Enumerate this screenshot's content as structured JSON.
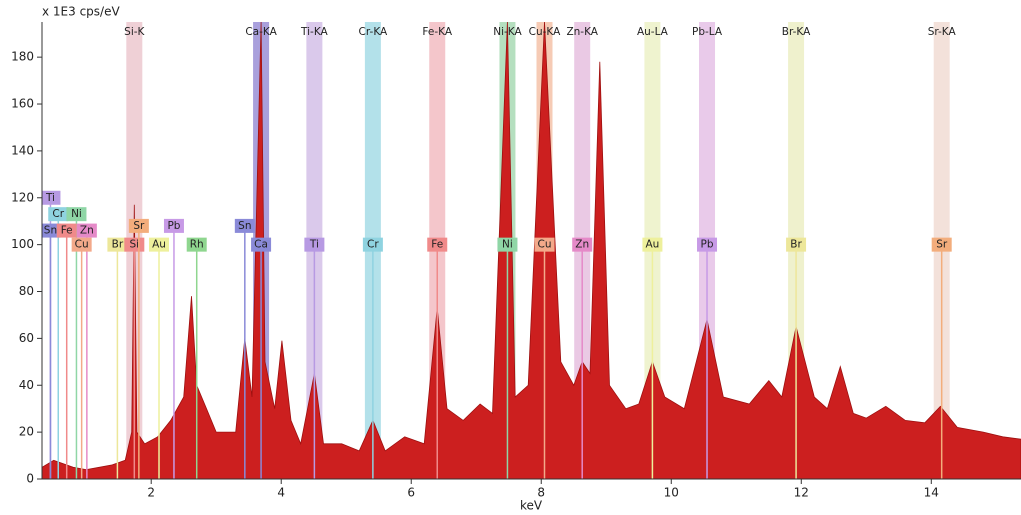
{
  "chart_data": {
    "type": "area",
    "y_label": "x 1E3 cps/eV",
    "x_label": "keV",
    "color": "#cc1f1f",
    "x": [
      0.32,
      0.5,
      0.8,
      1.0,
      1.2,
      1.4,
      1.6,
      1.7,
      1.74,
      1.78,
      1.9,
      2.1,
      2.3,
      2.5,
      2.62,
      2.7,
      2.85,
      3.0,
      3.3,
      3.44,
      3.55,
      3.69,
      3.75,
      3.9,
      4.01,
      4.15,
      4.3,
      4.51,
      4.65,
      4.93,
      5.2,
      5.41,
      5.6,
      5.9,
      6.2,
      6.4,
      6.55,
      6.8,
      7.06,
      7.25,
      7.48,
      7.6,
      7.8,
      8.05,
      8.3,
      8.5,
      8.63,
      8.75,
      8.9,
      9.05,
      9.3,
      9.5,
      9.71,
      9.9,
      10.2,
      10.55,
      10.8,
      11.2,
      11.5,
      11.7,
      11.92,
      12.2,
      12.4,
      12.6,
      12.8,
      13.0,
      13.3,
      13.6,
      13.9,
      14.14,
      14.4,
      14.8,
      15.1,
      15.38
    ],
    "values": [
      5,
      8,
      5,
      4,
      5,
      6,
      8,
      20,
      117,
      20,
      15,
      18,
      25,
      35,
      78,
      40,
      30,
      20,
      20,
      60,
      35,
      195,
      50,
      30,
      59,
      25,
      15,
      45,
      15,
      15,
      12,
      25,
      12,
      18,
      15,
      73,
      30,
      25,
      32,
      28,
      195,
      35,
      40,
      195,
      50,
      40,
      50,
      45,
      178,
      40,
      30,
      32,
      50,
      35,
      30,
      68,
      35,
      32,
      42,
      35,
      65,
      35,
      30,
      48,
      28,
      26,
      31,
      25,
      24,
      31,
      22,
      20,
      18,
      17
    ],
    "xlim": [
      0.32,
      15.38
    ],
    "ylim": [
      0,
      195
    ],
    "xticks": [
      2,
      4,
      6,
      8,
      10,
      12,
      14
    ],
    "yticks": [
      0,
      20,
      40,
      60,
      80,
      100,
      120,
      140,
      160,
      180
    ],
    "bands": [
      {
        "label": "Si-K",
        "x": 1.74,
        "color": "#ecc8cf"
      },
      {
        "label": "Ca-KA",
        "x": 3.69,
        "color": "#9a8fd6"
      },
      {
        "label": "Ti-KA",
        "x": 4.51,
        "color": "#d3c0e8"
      },
      {
        "label": "Cr-KA",
        "x": 5.41,
        "color": "#a6dce6"
      },
      {
        "label": "Fe-KA",
        "x": 6.4,
        "color": "#f2bcc2"
      },
      {
        "label": "Ni-KA",
        "x": 7.48,
        "color": "#a8d9b4"
      },
      {
        "label": "Cu-KA",
        "x": 8.05,
        "color": "#f5c2a8"
      },
      {
        "label": "Zn-KA",
        "x": 8.63,
        "color": "#e6bfdf"
      },
      {
        "label": "Au-LA",
        "x": 9.71,
        "color": "#ecf1c7"
      },
      {
        "label": "Pb-LA",
        "x": 10.55,
        "color": "#e5c1e6"
      },
      {
        "label": "Br-KA",
        "x": 11.92,
        "color": "#ecefc4"
      },
      {
        "label": "Sr-KA",
        "x": 14.16,
        "color": "#f1dcd3"
      }
    ],
    "markers": [
      {
        "label": "Ti",
        "x": 0.45,
        "y": 120,
        "color": "#b79ae3"
      },
      {
        "label": "Cr",
        "x": 0.57,
        "y": 113,
        "color": "#8fd3e0"
      },
      {
        "label": "Ni",
        "x": 0.85,
        "y": 113,
        "color": "#8fd6a6"
      },
      {
        "label": "Sn",
        "x": 0.45,
        "y": 106,
        "color": "#8a8ad8"
      },
      {
        "label": "Fe",
        "x": 0.7,
        "y": 106,
        "color": "#f08a8a"
      },
      {
        "label": "Zn",
        "x": 1.01,
        "y": 106,
        "color": "#e58ac8"
      },
      {
        "label": "Cu",
        "x": 0.93,
        "y": 100,
        "color": "#f3a98a"
      },
      {
        "label": "Br",
        "x": 1.48,
        "y": 100,
        "color": "#ede79a"
      },
      {
        "label": "Si",
        "x": 1.74,
        "y": 100,
        "color": "#f08a8a"
      },
      {
        "label": "Sr",
        "x": 1.81,
        "y": 108,
        "color": "#f3ad7c"
      },
      {
        "label": "Au",
        "x": 2.12,
        "y": 100,
        "color": "#eef09c"
      },
      {
        "label": "Pb",
        "x": 2.35,
        "y": 108,
        "color": "#c79ae6"
      },
      {
        "label": "Rh",
        "x": 2.7,
        "y": 100,
        "color": "#8fd68f"
      },
      {
        "label": "Sn",
        "x": 3.44,
        "y": 108,
        "color": "#8a8ad8"
      },
      {
        "label": "Ca",
        "x": 3.69,
        "y": 100,
        "color": "#8a8ad8"
      },
      {
        "label": "Ti",
        "x": 4.51,
        "y": 100,
        "color": "#b79ae3"
      },
      {
        "label": "Cr",
        "x": 5.41,
        "y": 100,
        "color": "#8fd3e0"
      },
      {
        "label": "Fe",
        "x": 6.4,
        "y": 100,
        "color": "#f08a8a"
      },
      {
        "label": "Ni",
        "x": 7.48,
        "y": 100,
        "color": "#8fd6a6"
      },
      {
        "label": "Cu",
        "x": 8.05,
        "y": 100,
        "color": "#f3a98a"
      },
      {
        "label": "Zn",
        "x": 8.63,
        "y": 100,
        "color": "#e58ac8"
      },
      {
        "label": "Au",
        "x": 9.71,
        "y": 100,
        "color": "#eef09c"
      },
      {
        "label": "Pb",
        "x": 10.55,
        "y": 100,
        "color": "#c79ae6"
      },
      {
        "label": "Br",
        "x": 11.92,
        "y": 100,
        "color": "#ede79a"
      },
      {
        "label": "Sr",
        "x": 14.16,
        "y": 100,
        "color": "#f3ad7c"
      }
    ]
  }
}
